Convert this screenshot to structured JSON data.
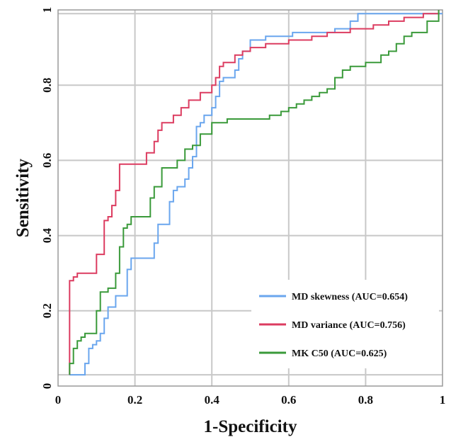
{
  "chart_data": {
    "type": "line",
    "title": "",
    "xlabel": "1-Specificity",
    "ylabel": "Sensitivity",
    "xlim": [
      0,
      1
    ],
    "ylim": [
      0,
      1
    ],
    "grid": true,
    "x_ticks": [
      0,
      0.2,
      0.4,
      0.6,
      0.8,
      1
    ],
    "y_ticks": [
      0,
      0.2,
      0.4,
      0.6,
      0.8,
      1
    ],
    "x_tick_labels": [
      "0",
      "0.2",
      "0.4",
      "0.6",
      "0.8",
      "1"
    ],
    "y_tick_labels": [
      "0",
      "0.2",
      "0.4",
      "0.6",
      "0.8",
      "1"
    ],
    "legend_position": "bottom-right",
    "series": [
      {
        "name": "MD skewness (AUC=0.654)",
        "color": "#6aa6ee",
        "points": [
          [
            0.03,
            0.03
          ],
          [
            0.07,
            0.03
          ],
          [
            0.07,
            0.06
          ],
          [
            0.08,
            0.06
          ],
          [
            0.08,
            0.1
          ],
          [
            0.09,
            0.1
          ],
          [
            0.09,
            0.11
          ],
          [
            0.1,
            0.11
          ],
          [
            0.1,
            0.12
          ],
          [
            0.11,
            0.12
          ],
          [
            0.11,
            0.14
          ],
          [
            0.12,
            0.14
          ],
          [
            0.12,
            0.18
          ],
          [
            0.13,
            0.18
          ],
          [
            0.13,
            0.21
          ],
          [
            0.15,
            0.21
          ],
          [
            0.15,
            0.24
          ],
          [
            0.18,
            0.24
          ],
          [
            0.18,
            0.31
          ],
          [
            0.19,
            0.31
          ],
          [
            0.19,
            0.34
          ],
          [
            0.25,
            0.34
          ],
          [
            0.25,
            0.38
          ],
          [
            0.26,
            0.38
          ],
          [
            0.26,
            0.43
          ],
          [
            0.29,
            0.43
          ],
          [
            0.29,
            0.49
          ],
          [
            0.3,
            0.49
          ],
          [
            0.3,
            0.52
          ],
          [
            0.31,
            0.52
          ],
          [
            0.31,
            0.53
          ],
          [
            0.33,
            0.53
          ],
          [
            0.33,
            0.55
          ],
          [
            0.34,
            0.55
          ],
          [
            0.34,
            0.58
          ],
          [
            0.35,
            0.58
          ],
          [
            0.35,
            0.61
          ],
          [
            0.36,
            0.61
          ],
          [
            0.36,
            0.69
          ],
          [
            0.37,
            0.69
          ],
          [
            0.37,
            0.7
          ],
          [
            0.38,
            0.7
          ],
          [
            0.38,
            0.72
          ],
          [
            0.4,
            0.72
          ],
          [
            0.4,
            0.74
          ],
          [
            0.41,
            0.74
          ],
          [
            0.41,
            0.77
          ],
          [
            0.42,
            0.77
          ],
          [
            0.42,
            0.81
          ],
          [
            0.43,
            0.81
          ],
          [
            0.43,
            0.82
          ],
          [
            0.46,
            0.82
          ],
          [
            0.46,
            0.84
          ],
          [
            0.47,
            0.84
          ],
          [
            0.47,
            0.87
          ],
          [
            0.48,
            0.87
          ],
          [
            0.48,
            0.89
          ],
          [
            0.5,
            0.89
          ],
          [
            0.5,
            0.92
          ],
          [
            0.54,
            0.92
          ],
          [
            0.54,
            0.93
          ],
          [
            0.61,
            0.93
          ],
          [
            0.61,
            0.94
          ],
          [
            0.72,
            0.94
          ],
          [
            0.72,
            0.95
          ],
          [
            0.76,
            0.95
          ],
          [
            0.76,
            0.97
          ],
          [
            0.78,
            0.97
          ],
          [
            0.78,
            0.99
          ],
          [
            1.0,
            0.99
          ]
        ]
      },
      {
        "name": "MD variance (AUC=0.756)",
        "color": "#dc3c60",
        "points": [
          [
            0.03,
            0.03
          ],
          [
            0.03,
            0.28
          ],
          [
            0.04,
            0.28
          ],
          [
            0.04,
            0.29
          ],
          [
            0.05,
            0.29
          ],
          [
            0.05,
            0.3
          ],
          [
            0.1,
            0.3
          ],
          [
            0.1,
            0.35
          ],
          [
            0.12,
            0.35
          ],
          [
            0.12,
            0.44
          ],
          [
            0.13,
            0.44
          ],
          [
            0.13,
            0.45
          ],
          [
            0.14,
            0.45
          ],
          [
            0.14,
            0.48
          ],
          [
            0.15,
            0.48
          ],
          [
            0.15,
            0.52
          ],
          [
            0.16,
            0.52
          ],
          [
            0.16,
            0.59
          ],
          [
            0.23,
            0.59
          ],
          [
            0.23,
            0.62
          ],
          [
            0.25,
            0.62
          ],
          [
            0.25,
            0.65
          ],
          [
            0.26,
            0.65
          ],
          [
            0.26,
            0.68
          ],
          [
            0.27,
            0.68
          ],
          [
            0.27,
            0.7
          ],
          [
            0.3,
            0.7
          ],
          [
            0.3,
            0.72
          ],
          [
            0.32,
            0.72
          ],
          [
            0.32,
            0.74
          ],
          [
            0.34,
            0.74
          ],
          [
            0.34,
            0.76
          ],
          [
            0.37,
            0.76
          ],
          [
            0.37,
            0.78
          ],
          [
            0.4,
            0.78
          ],
          [
            0.4,
            0.8
          ],
          [
            0.41,
            0.8
          ],
          [
            0.41,
            0.82
          ],
          [
            0.42,
            0.82
          ],
          [
            0.42,
            0.85
          ],
          [
            0.43,
            0.85
          ],
          [
            0.43,
            0.86
          ],
          [
            0.46,
            0.86
          ],
          [
            0.46,
            0.88
          ],
          [
            0.48,
            0.88
          ],
          [
            0.48,
            0.89
          ],
          [
            0.5,
            0.89
          ],
          [
            0.5,
            0.9
          ],
          [
            0.54,
            0.9
          ],
          [
            0.54,
            0.91
          ],
          [
            0.6,
            0.91
          ],
          [
            0.6,
            0.92
          ],
          [
            0.66,
            0.92
          ],
          [
            0.66,
            0.93
          ],
          [
            0.7,
            0.93
          ],
          [
            0.7,
            0.94
          ],
          [
            0.76,
            0.94
          ],
          [
            0.76,
            0.95
          ],
          [
            0.82,
            0.95
          ],
          [
            0.82,
            0.96
          ],
          [
            0.86,
            0.96
          ],
          [
            0.86,
            0.97
          ],
          [
            0.9,
            0.97
          ],
          [
            0.9,
            0.98
          ],
          [
            0.95,
            0.98
          ],
          [
            0.95,
            0.99
          ],
          [
            0.99,
            0.99
          ],
          [
            0.99,
            1.0
          ]
        ]
      },
      {
        "name": "MK C50 (AUC=0.625)",
        "color": "#3a9a3a",
        "points": [
          [
            0.03,
            0.03
          ],
          [
            0.03,
            0.06
          ],
          [
            0.04,
            0.06
          ],
          [
            0.04,
            0.1
          ],
          [
            0.05,
            0.1
          ],
          [
            0.05,
            0.12
          ],
          [
            0.06,
            0.12
          ],
          [
            0.06,
            0.13
          ],
          [
            0.07,
            0.13
          ],
          [
            0.07,
            0.14
          ],
          [
            0.1,
            0.14
          ],
          [
            0.1,
            0.2
          ],
          [
            0.11,
            0.2
          ],
          [
            0.11,
            0.25
          ],
          [
            0.13,
            0.25
          ],
          [
            0.13,
            0.26
          ],
          [
            0.15,
            0.26
          ],
          [
            0.15,
            0.3
          ],
          [
            0.16,
            0.3
          ],
          [
            0.16,
            0.37
          ],
          [
            0.17,
            0.37
          ],
          [
            0.17,
            0.42
          ],
          [
            0.18,
            0.42
          ],
          [
            0.18,
            0.43
          ],
          [
            0.19,
            0.43
          ],
          [
            0.19,
            0.45
          ],
          [
            0.24,
            0.45
          ],
          [
            0.24,
            0.5
          ],
          [
            0.25,
            0.5
          ],
          [
            0.25,
            0.53
          ],
          [
            0.27,
            0.53
          ],
          [
            0.27,
            0.58
          ],
          [
            0.31,
            0.58
          ],
          [
            0.31,
            0.6
          ],
          [
            0.33,
            0.6
          ],
          [
            0.33,
            0.63
          ],
          [
            0.35,
            0.63
          ],
          [
            0.35,
            0.64
          ],
          [
            0.37,
            0.64
          ],
          [
            0.37,
            0.67
          ],
          [
            0.4,
            0.67
          ],
          [
            0.4,
            0.7
          ],
          [
            0.44,
            0.7
          ],
          [
            0.44,
            0.71
          ],
          [
            0.55,
            0.71
          ],
          [
            0.55,
            0.72
          ],
          [
            0.58,
            0.72
          ],
          [
            0.58,
            0.73
          ],
          [
            0.6,
            0.73
          ],
          [
            0.6,
            0.74
          ],
          [
            0.62,
            0.74
          ],
          [
            0.62,
            0.75
          ],
          [
            0.64,
            0.75
          ],
          [
            0.64,
            0.76
          ],
          [
            0.66,
            0.76
          ],
          [
            0.66,
            0.77
          ],
          [
            0.68,
            0.77
          ],
          [
            0.68,
            0.78
          ],
          [
            0.7,
            0.78
          ],
          [
            0.7,
            0.79
          ],
          [
            0.72,
            0.79
          ],
          [
            0.72,
            0.82
          ],
          [
            0.74,
            0.82
          ],
          [
            0.74,
            0.84
          ],
          [
            0.76,
            0.84
          ],
          [
            0.76,
            0.85
          ],
          [
            0.8,
            0.85
          ],
          [
            0.8,
            0.86
          ],
          [
            0.84,
            0.86
          ],
          [
            0.84,
            0.88
          ],
          [
            0.86,
            0.88
          ],
          [
            0.86,
            0.89
          ],
          [
            0.88,
            0.89
          ],
          [
            0.88,
            0.91
          ],
          [
            0.9,
            0.91
          ],
          [
            0.9,
            0.93
          ],
          [
            0.92,
            0.93
          ],
          [
            0.92,
            0.94
          ],
          [
            0.96,
            0.94
          ],
          [
            0.96,
            0.97
          ],
          [
            0.99,
            0.97
          ],
          [
            0.99,
            1.0
          ]
        ]
      }
    ]
  }
}
